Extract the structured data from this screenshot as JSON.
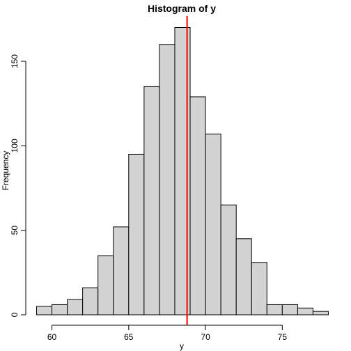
{
  "chart_data": {
    "type": "bar",
    "title": "Histogram of y",
    "xlabel": "y",
    "ylabel": "Frequency",
    "bin_width": 1,
    "bins": [
      {
        "start": 59,
        "end": 60,
        "count": 5
      },
      {
        "start": 60,
        "end": 61,
        "count": 6
      },
      {
        "start": 61,
        "end": 62,
        "count": 9
      },
      {
        "start": 62,
        "end": 63,
        "count": 16
      },
      {
        "start": 63,
        "end": 64,
        "count": 35
      },
      {
        "start": 64,
        "end": 65,
        "count": 52
      },
      {
        "start": 65,
        "end": 66,
        "count": 95
      },
      {
        "start": 66,
        "end": 67,
        "count": 135
      },
      {
        "start": 67,
        "end": 68,
        "count": 160
      },
      {
        "start": 68,
        "end": 69,
        "count": 170
      },
      {
        "start": 69,
        "end": 70,
        "count": 129
      },
      {
        "start": 70,
        "end": 71,
        "count": 107
      },
      {
        "start": 71,
        "end": 72,
        "count": 65
      },
      {
        "start": 72,
        "end": 73,
        "count": 45
      },
      {
        "start": 73,
        "end": 74,
        "count": 31
      },
      {
        "start": 74,
        "end": 75,
        "count": 6
      },
      {
        "start": 75,
        "end": 76,
        "count": 6
      },
      {
        "start": 76,
        "end": 77,
        "count": 4
      },
      {
        "start": 77,
        "end": 78,
        "count": 2
      }
    ],
    "xlim": [
      59,
      78
    ],
    "ylim": [
      0,
      170
    ],
    "x_ticks": [
      60,
      65,
      70,
      75
    ],
    "y_ticks": [
      0,
      50,
      100,
      150
    ],
    "vline": {
      "x": 68.8,
      "color": "#ff0000"
    },
    "bar_fill": "#d3d3d3",
    "bar_stroke": "#000000",
    "grid": false
  }
}
